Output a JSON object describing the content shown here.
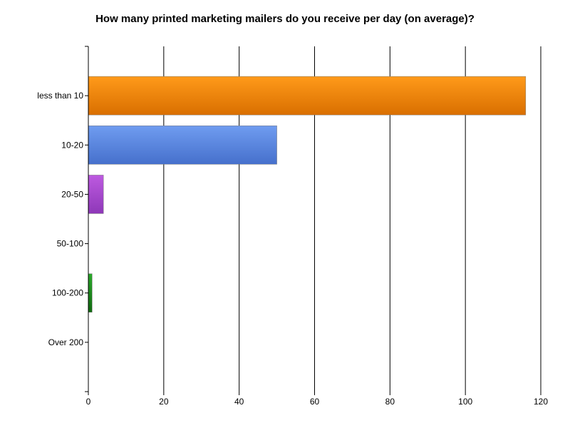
{
  "chart_data": {
    "type": "bar",
    "orientation": "horizontal",
    "title": "How many printed marketing mailers do you receive per day (on average)?",
    "categories": [
      "less than 10",
      "10-20",
      "20-50",
      "50-100",
      "100-200",
      "Over 200"
    ],
    "values": [
      116,
      50,
      4,
      0,
      1,
      0
    ],
    "colors": [
      "#f28500",
      "#5b8ce2",
      "#a04ad0",
      "#888888",
      "#1a8a1a",
      "#888888"
    ],
    "xlim": [
      0,
      120
    ],
    "xticks": [
      0,
      20,
      40,
      60,
      80,
      100,
      120
    ],
    "grid": true,
    "xlabel": "",
    "ylabel": ""
  }
}
